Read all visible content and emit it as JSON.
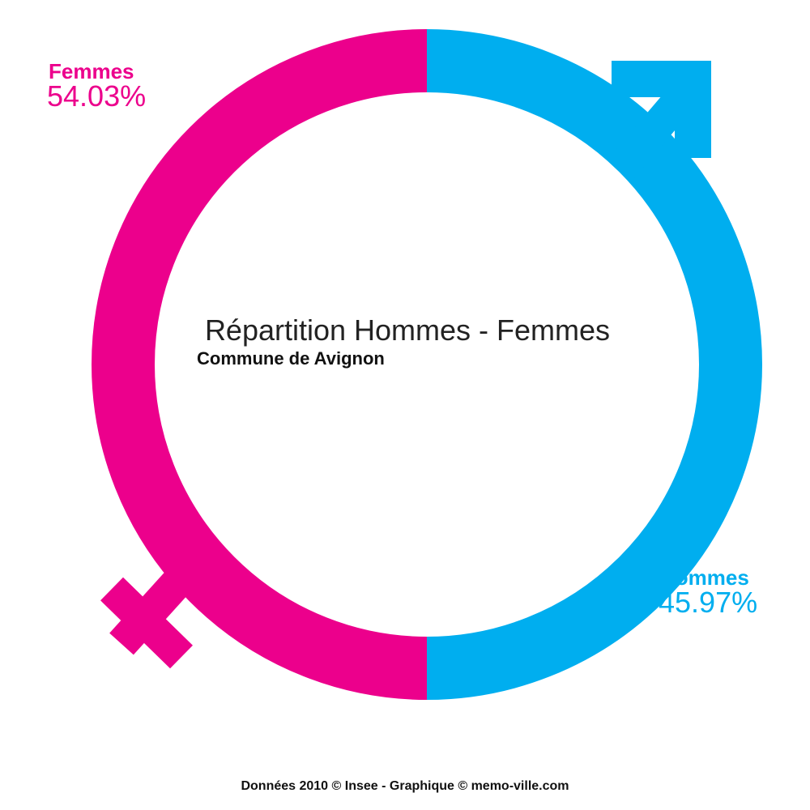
{
  "title": "Répartition Hommes - Femmes",
  "subtitle": "Commune de Avignon",
  "femmes": {
    "label": "Femmes",
    "value": "54.03%"
  },
  "hommes": {
    "label": "Hommes",
    "value": "45.97%"
  },
  "footer": "Données 2010 © Insee - Graphique © memo-ville.com"
}
